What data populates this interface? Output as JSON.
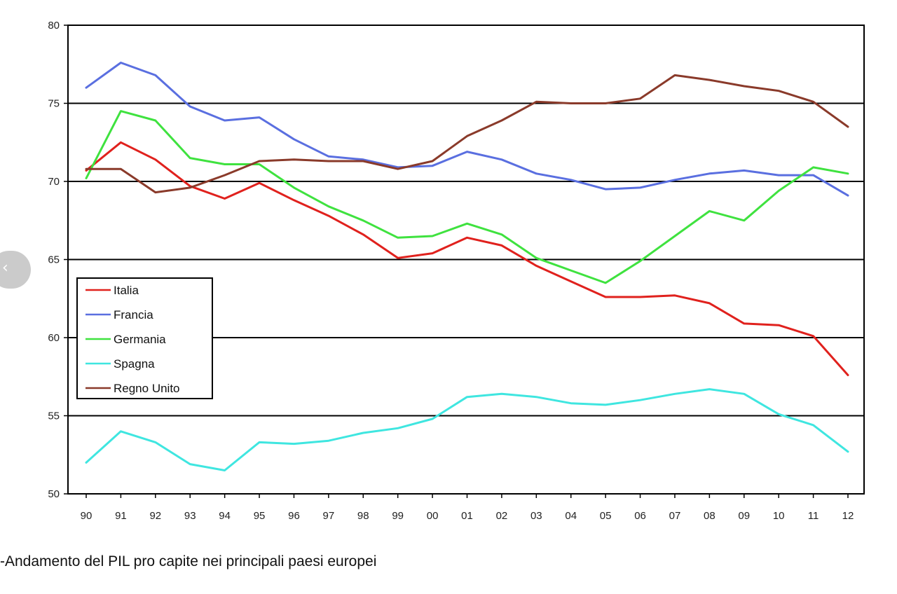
{
  "caption": "-Andamento del PIL pro capite nei principali paesi europei",
  "nav": {
    "prev_icon": "chevron-left-icon",
    "prev_glyph": "‹"
  },
  "chart_data": {
    "type": "line",
    "title": "",
    "xlabel": "",
    "ylabel": "",
    "ylim": [
      50,
      80
    ],
    "yticks": [
      50,
      55,
      60,
      65,
      70,
      75,
      80
    ],
    "grid": "horizontal",
    "legend": "left",
    "categories": [
      "90",
      "91",
      "92",
      "93",
      "94",
      "95",
      "96",
      "97",
      "98",
      "99",
      "00",
      "01",
      "02",
      "03",
      "04",
      "05",
      "06",
      "07",
      "08",
      "09",
      "10",
      "11",
      "12"
    ],
    "series": [
      {
        "name": "Italia",
        "color": "#e0211d",
        "values": [
          70.7,
          72.5,
          71.4,
          69.7,
          68.9,
          69.9,
          68.8,
          67.8,
          66.6,
          65.1,
          65.4,
          66.4,
          65.9,
          64.6,
          63.6,
          62.6,
          62.6,
          62.7,
          62.2,
          60.9,
          60.8,
          60.1,
          57.6
        ]
      },
      {
        "name": "Francia",
        "color": "#5a6fe0",
        "values": [
          76.0,
          77.6,
          76.8,
          74.8,
          73.9,
          74.1,
          72.7,
          71.6,
          71.4,
          70.9,
          71.0,
          71.9,
          71.4,
          70.5,
          70.1,
          69.5,
          69.6,
          70.1,
          70.5,
          70.7,
          70.4,
          70.4,
          69.1
        ]
      },
      {
        "name": "Germania",
        "color": "#3fe23f",
        "values": [
          70.2,
          74.5,
          73.9,
          71.5,
          71.1,
          71.1,
          69.6,
          68.4,
          67.5,
          66.4,
          66.5,
          67.3,
          66.6,
          65.1,
          64.3,
          63.5,
          64.9,
          66.5,
          68.1,
          67.5,
          69.4,
          70.9,
          70.5
        ]
      },
      {
        "name": "Spagna",
        "color": "#3fe6e0",
        "values": [
          52.0,
          54.0,
          53.3,
          51.9,
          51.5,
          53.3,
          53.2,
          53.4,
          53.9,
          54.2,
          54.8,
          56.2,
          56.4,
          56.2,
          55.8,
          55.7,
          56.0,
          56.4,
          56.7,
          56.4,
          55.1,
          54.4,
          52.7
        ]
      },
      {
        "name": "Regno Unito",
        "color": "#8a3a2a",
        "values": [
          70.8,
          70.8,
          69.3,
          69.6,
          70.4,
          71.3,
          71.4,
          71.3,
          71.3,
          70.8,
          71.3,
          72.9,
          73.9,
          75.1,
          75.0,
          75.0,
          75.3,
          76.8,
          76.5,
          76.1,
          75.8,
          75.1,
          73.5
        ]
      }
    ]
  }
}
